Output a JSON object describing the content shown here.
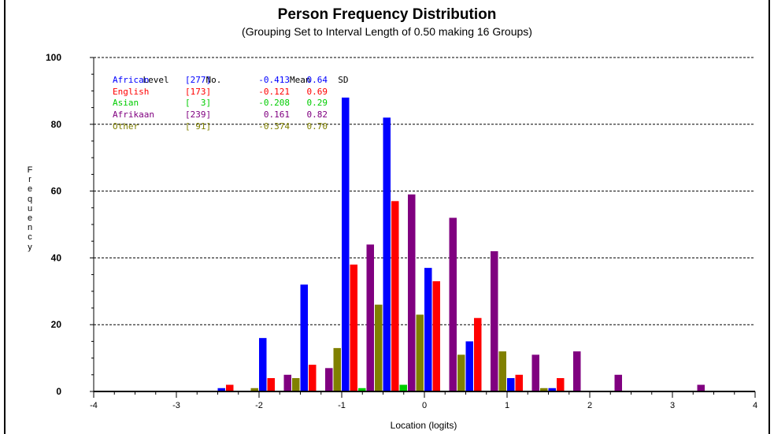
{
  "chart_data": {
    "type": "bar",
    "title": "Person Frequency Distribution",
    "subtitle": "(Grouping Set to Interval Length of  0.50  making  16  Groups)",
    "xlabel": "Location (logits)",
    "ylabel": "Frequency",
    "xlim": [
      -4,
      4
    ],
    "ylim": [
      0,
      100
    ],
    "x_ticks": [
      "-4",
      "-3",
      "-2",
      "-1",
      "0",
      "1",
      "2",
      "3",
      "4"
    ],
    "y_ticks": [
      "0",
      "20",
      "40",
      "60",
      "80",
      "100"
    ],
    "grid": "horizontal dashed",
    "legend_position": "top-left",
    "legend_headers": [
      "Level",
      "No.",
      "Mean",
      "SD"
    ],
    "group_centers": [
      -2.25,
      -1.75,
      -1.25,
      -0.75,
      -0.25,
      0.25,
      0.75,
      1.25,
      1.75,
      2.25,
      2.75,
      3.25
    ],
    "series": [
      {
        "name": "African",
        "count": "[277]",
        "mean": "-0.413",
        "sd": "0.64",
        "color": "#0000ff",
        "values": [
          1,
          16,
          32,
          88,
          82,
          37,
          15,
          4,
          1,
          0,
          0,
          0
        ]
      },
      {
        "name": "English",
        "count": "[173]",
        "mean": "-0.121",
        "sd": "0.69",
        "color": "#ff0000",
        "values": [
          2,
          4,
          8,
          38,
          57,
          33,
          22,
          5,
          4,
          0,
          0,
          0
        ]
      },
      {
        "name": "Asian",
        "count": "[  3]",
        "mean": "-0.208",
        "sd": "0.29",
        "color": "#00cc00",
        "values": [
          0,
          0,
          0,
          1,
          2,
          0,
          0,
          0,
          0,
          0,
          0,
          0
        ]
      },
      {
        "name": "Afrikaan",
        "count": "[239]",
        "mean": "0.161",
        "sd": "0.82",
        "color": "#800080",
        "values": [
          0,
          5,
          7,
          44,
          59,
          52,
          42,
          11,
          12,
          5,
          0,
          2
        ]
      },
      {
        "name": "Other",
        "count": "[ 91]",
        "mean": "-0.374",
        "sd": "0.70",
        "color": "#808000",
        "values": [
          1,
          4,
          13,
          26,
          23,
          11,
          12,
          1,
          0,
          0,
          0,
          0
        ]
      }
    ]
  }
}
